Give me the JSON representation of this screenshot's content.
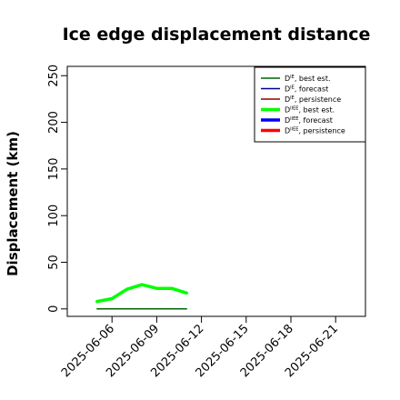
{
  "chart_data": {
    "type": "line",
    "title": "Ice edge displacement distance",
    "xlabel": "",
    "ylabel": "Displacement (km)",
    "x_tick_labels": [
      "2025-06-06",
      "2025-06-09",
      "2025-06-12",
      "2025-06-15",
      "2025-06-18",
      "2025-06-21"
    ],
    "highlighted_x_tick": "2025-06-12",
    "highlight_color": "#228B22",
    "xlim": [
      "2025-06-03",
      "2025-06-23"
    ],
    "ylim": [
      -8,
      260
    ],
    "y_ticks": [
      0,
      50,
      100,
      150,
      200,
      250
    ],
    "legend_position": "top-right",
    "legend": [
      {
        "label": "D",
        "sup": "IE",
        "suffix": ", best est.",
        "color": "#006400",
        "lw": 1.5
      },
      {
        "label": "D",
        "sup": "IE",
        "suffix": ", forecast",
        "color": "#00008B",
        "lw": 1.5
      },
      {
        "label": "D",
        "sup": "IE",
        "suffix": ", persistence",
        "color": "#8B0000",
        "lw": 1.5
      },
      {
        "label": "D",
        "sup": "IIEE",
        "suffix": ", best est.",
        "color": "#00FF00",
        "lw": 3.5
      },
      {
        "label": "D",
        "sup": "IIEE",
        "suffix": ", forecast",
        "color": "#0000FF",
        "lw": 3.5
      },
      {
        "label": "D",
        "sup": "IIEE",
        "suffix": ", persistence",
        "color": "#FF0000",
        "lw": 3.5
      }
    ],
    "series": [
      {
        "name": "D^IE, best est.",
        "color": "#006400",
        "lw": 1.5,
        "x": [
          "2025-06-05",
          "2025-06-06",
          "2025-06-07",
          "2025-06-08",
          "2025-06-09",
          "2025-06-10",
          "2025-06-11"
        ],
        "y": [
          0,
          0,
          0,
          0,
          0,
          0,
          0
        ]
      },
      {
        "name": "D^IIEE, best est.",
        "color": "#00FF00",
        "lw": 3.5,
        "x": [
          "2025-06-05",
          "2025-06-06",
          "2025-06-07",
          "2025-06-08",
          "2025-06-09",
          "2025-06-10",
          "2025-06-11"
        ],
        "y": [
          8,
          11,
          21,
          26,
          22,
          22,
          17
        ]
      }
    ]
  }
}
